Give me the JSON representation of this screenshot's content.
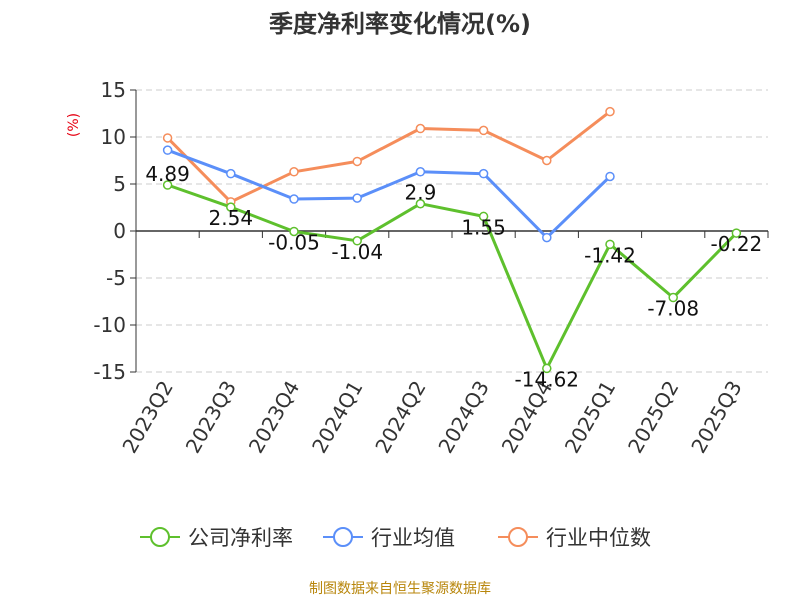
{
  "colors": {
    "company": "#5ec02d",
    "industry_avg": "#5b8ff9",
    "industry_median": "#f58d5b",
    "grid": "#cccccc",
    "axis": "#333333",
    "unit": "#e60012",
    "footer": "#b8860b"
  },
  "chart_data": {
    "type": "line",
    "title": "季度净利率变化情况(%)",
    "ylabel": "(%)",
    "xlabel": "",
    "ylim": [
      -15,
      15
    ],
    "yticks": [
      15,
      10,
      5,
      0,
      -5,
      -10,
      -15
    ],
    "grid": true,
    "legend_position": "bottom",
    "categories": [
      "2023Q2",
      "2023Q3",
      "2023Q4",
      "2024Q1",
      "2024Q2",
      "2024Q3",
      "2024Q4",
      "2025Q1",
      "2025Q2",
      "2025Q3"
    ],
    "series": [
      {
        "name": "公司净利率",
        "color_key": "company",
        "values": [
          4.89,
          2.54,
          -0.05,
          -1.04,
          2.9,
          1.55,
          -14.62,
          -1.42,
          -7.08,
          -0.22
        ],
        "labels": [
          "4.89",
          "2.54",
          "-0.05",
          "-1.04",
          "2.9",
          "1.55",
          "-14.62",
          "-1.42",
          "-7.08",
          "-0.22"
        ]
      },
      {
        "name": "行业均值",
        "color_key": "industry_avg",
        "values": [
          8.6,
          6.1,
          3.4,
          3.5,
          6.3,
          6.1,
          -0.7,
          5.8,
          null,
          null
        ]
      },
      {
        "name": "行业中位数",
        "color_key": "industry_median",
        "values": [
          9.9,
          3.1,
          6.3,
          7.4,
          10.9,
          10.7,
          7.5,
          12.7,
          null,
          null
        ]
      }
    ]
  },
  "footer": "制图数据来自恒生聚源数据库"
}
